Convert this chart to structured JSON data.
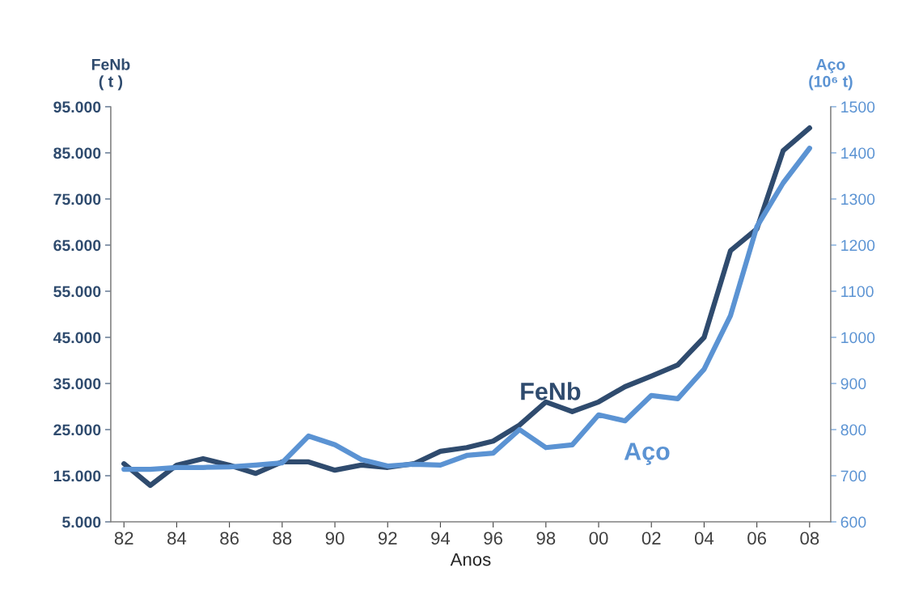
{
  "chart_data": {
    "type": "line",
    "xlabel": "Anos",
    "ylabel": "FeNb\n( t )",
    "y2label": "Aço\n(10⁶ t)",
    "x": [
      1982,
      1983,
      1984,
      1985,
      1986,
      1987,
      1988,
      1989,
      1990,
      1991,
      1992,
      1993,
      1994,
      1995,
      1996,
      1997,
      1998,
      1999,
      2000,
      2001,
      2002,
      2003,
      2004,
      2005,
      2006,
      2007,
      2008
    ],
    "series": [
      {
        "name": "FeNb",
        "color": "#2f4b6e",
        "values": [
          17600,
          12900,
          17300,
          18700,
          17300,
          15500,
          18000,
          18000,
          16200,
          17300,
          16800,
          17600,
          20300,
          21100,
          22500,
          26000,
          31000,
          28900,
          31000,
          34300,
          36600,
          39000,
          45000,
          63800,
          68500,
          85500,
          90400
        ]
      },
      {
        "name": "Aço",
        "color": "#5b93d3",
        "axis": "y2",
        "values": [
          714,
          714,
          718,
          718,
          719,
          723,
          728,
          786,
          767,
          735,
          721,
          725,
          723,
          744,
          749,
          800,
          761,
          767,
          832,
          819,
          874,
          867,
          931,
          1047,
          1240,
          1335,
          1410
        ]
      }
    ],
    "xlim": [
      1981.5,
      2008.8
    ],
    "xticks": [
      {
        "value": 1982,
        "label": "82"
      },
      {
        "value": 1984,
        "label": "84"
      },
      {
        "value": 1986,
        "label": "86"
      },
      {
        "value": 1988,
        "label": "88"
      },
      {
        "value": 1990,
        "label": "90"
      },
      {
        "value": 1992,
        "label": "92"
      },
      {
        "value": 1994,
        "label": "94"
      },
      {
        "value": 1996,
        "label": "96"
      },
      {
        "value": 1998,
        "label": "98"
      },
      {
        "value": 2000,
        "label": "00"
      },
      {
        "value": 2002,
        "label": "02"
      },
      {
        "value": 2004,
        "label": "04"
      },
      {
        "value": 2006,
        "label": "06"
      },
      {
        "value": 2008,
        "label": "08"
      }
    ],
    "ylim": [
      5000,
      95000
    ],
    "yticks": [
      {
        "value": 5000,
        "label": "5.000"
      },
      {
        "value": 15000,
        "label": "15.000"
      },
      {
        "value": 25000,
        "label": "25.000"
      },
      {
        "value": 35000,
        "label": "35.000"
      },
      {
        "value": 45000,
        "label": "45.000"
      },
      {
        "value": 55000,
        "label": "55.000"
      },
      {
        "value": 65000,
        "label": "65.000"
      },
      {
        "value": 75000,
        "label": "75.000"
      },
      {
        "value": 85000,
        "label": "85.000"
      },
      {
        "value": 95000,
        "label": "95.000"
      }
    ],
    "y2lim": [
      600,
      1500
    ],
    "y2ticks": [
      600,
      700,
      800,
      900,
      1000,
      1100,
      1200,
      1300,
      1400,
      1500
    ],
    "grid": false,
    "legend": false,
    "marker": "none",
    "line_style": "solid"
  }
}
